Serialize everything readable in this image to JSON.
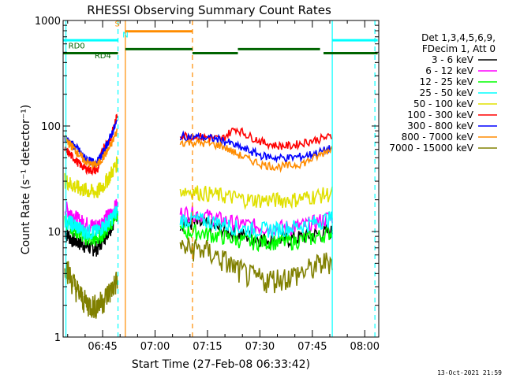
{
  "chart_data": {
    "type": "line",
    "title": "RHESSI Observing Summary Count Rates",
    "xlabel": "Start Time (27-Feb-08 06:33:42)",
    "ylabel": "Count Rate (s⁻¹ detector⁻¹)",
    "yscale": "log",
    "ylim": [
      1,
      1000
    ],
    "ytick_values": [
      1,
      10,
      100,
      1000
    ],
    "ytick_labels": [
      "1",
      "10",
      "100",
      "1000"
    ],
    "xlim": [
      0,
      90.3
    ],
    "xtick_values": [
      11.3,
      26.3,
      41.3,
      56.3,
      71.3,
      86.3
    ],
    "xtick_labels": [
      "06:45",
      "07:00",
      "07:15",
      "07:30",
      "07:45",
      "08:00"
    ],
    "legend_header": [
      "Det 1,3,4,5,6,9,",
      "FDecim 1, Att 0"
    ],
    "legend_position": "right",
    "footer": "13-Oct-2021 21:59",
    "series": [
      {
        "name": "3 - 6 keV",
        "color": "#000000",
        "seg1": [
          10,
          8.5,
          8,
          7.5,
          7,
          7,
          9,
          11,
          15
        ],
        "seg2": [
          12,
          12,
          11.5,
          10.5,
          9.5,
          9,
          8.5,
          8.5,
          8.5,
          9,
          9.5,
          10
        ]
      },
      {
        "name": "6 - 12 keV",
        "color": "#ff00ff",
        "seg1": [
          17,
          15,
          13,
          12,
          11.5,
          11.5,
          13,
          15,
          18
        ],
        "seg2": [
          15,
          15,
          14,
          13,
          12,
          11.5,
          11,
          11,
          11,
          11.5,
          12.5,
          14
        ]
      },
      {
        "name": "12 - 25 keV",
        "color": "#00ff00",
        "seg1": [
          13,
          11,
          10,
          9,
          8.5,
          8.5,
          10,
          12,
          15
        ],
        "seg2": [
          10,
          10,
          9.5,
          9,
          8.5,
          8,
          8,
          8,
          8,
          8.5,
          9,
          10
        ]
      },
      {
        "name": "25 - 50 keV",
        "color": "#00ffff",
        "seg1": [
          13,
          12,
          11,
          10,
          10,
          10,
          11.5,
          13,
          16
        ],
        "seg2": [
          13,
          13,
          12.5,
          12,
          11,
          10.5,
          10.5,
          10.5,
          11,
          11.5,
          12.5,
          13.5
        ]
      },
      {
        "name": "50 - 100 keV",
        "color": "#e0e000",
        "seg1": [
          31,
          28,
          26,
          25,
          24,
          24,
          28,
          35,
          45
        ],
        "seg2": [
          25,
          24,
          23,
          22,
          21,
          20,
          20,
          20,
          20,
          21,
          22,
          23
        ]
      },
      {
        "name": "100 - 300 keV",
        "color": "#ff0000",
        "seg1": [
          60,
          52,
          45,
          40,
          38,
          38,
          65,
          75,
          125
        ],
        "seg2": [
          82,
          80,
          78,
          75,
          95,
          80,
          70,
          65,
          65,
          70,
          75,
          80
        ]
      },
      {
        "name": "300 - 800 keV",
        "color": "#0000ff",
        "seg1": [
          78,
          68,
          60,
          50,
          46,
          46,
          58,
          80,
          110
        ],
        "seg2": [
          80,
          79,
          77,
          74,
          65,
          58,
          52,
          50,
          50,
          52,
          56,
          62
        ]
      },
      {
        "name": "800 - 7000 keV",
        "color": "#ff8c00",
        "seg1": [
          75,
          65,
          55,
          47,
          43,
          43,
          52,
          65,
          90
        ],
        "seg2": [
          70,
          70,
          68,
          65,
          55,
          48,
          43,
          41,
          42,
          45,
          52,
          62
        ]
      },
      {
        "name": "7000 - 15000 keV",
        "color": "#808000",
        "seg1": [
          5,
          3.5,
          2.7,
          2.2,
          2,
          2,
          2.3,
          2.8,
          3.5
        ],
        "seg2": [
          7,
          7,
          6.5,
          5.5,
          4.5,
          3.8,
          3.5,
          3.6,
          3.8,
          4.2,
          4.8,
          5.5
        ]
      }
    ],
    "annotations": {
      "flag_labels": [
        "S",
        "N",
        "RD0",
        "RD4"
      ],
      "saa_start": 17.8,
      "saa_end": 37.0,
      "night_end": 0.8,
      "night2_start": 77.0,
      "night2_end": 89.2
    }
  }
}
